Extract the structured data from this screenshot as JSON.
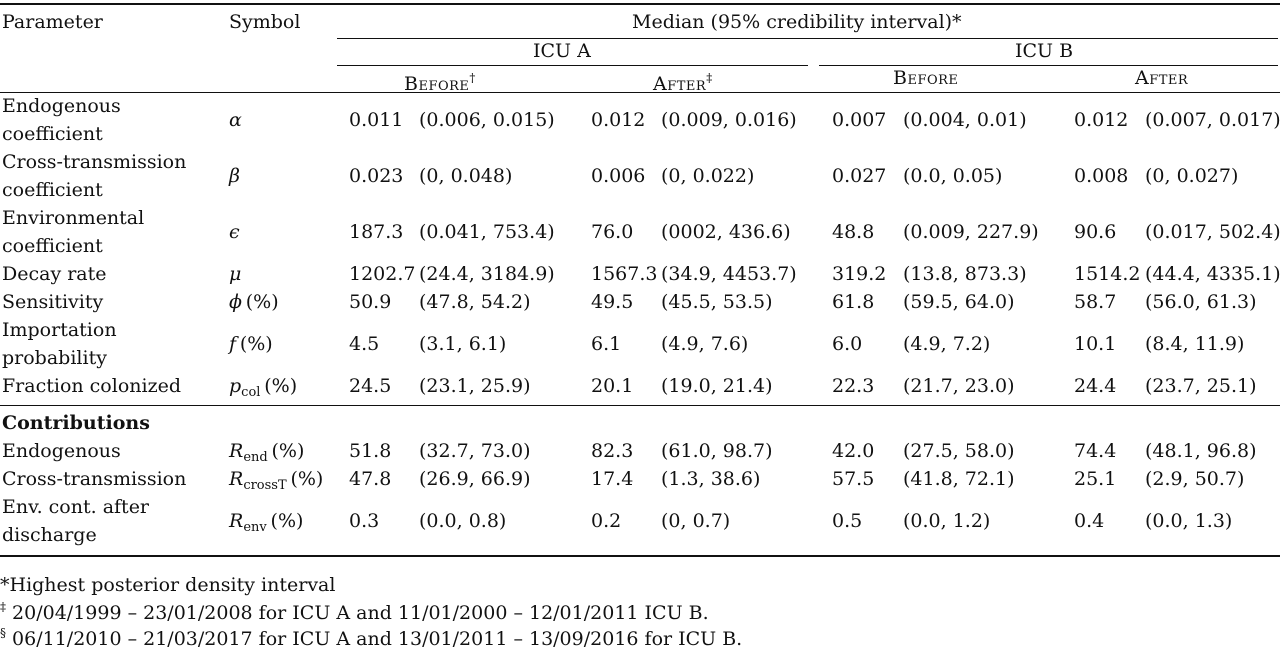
{
  "header": {
    "parameter": "Parameter",
    "symbol": "Symbol",
    "median": "Median (95% credibility interval)*",
    "icu_a": "ICU A",
    "icu_b": "ICU B",
    "before_a": "Before",
    "before_a_mark": "†",
    "after_a": "After",
    "after_a_mark": "‡",
    "before_b": "Before",
    "after_b": "After"
  },
  "rows": [
    {
      "param": [
        "Endogenous",
        "coefficient"
      ],
      "symbol": "α",
      "vals": [
        "0.011",
        "(0.006, 0.015)",
        "0.012",
        "(0.009, 0.016)",
        "0.007",
        "(0.004, 0.01)",
        "0.012",
        "(0.007, 0.017)"
      ]
    },
    {
      "param": [
        "Cross-transmission",
        "coefficient"
      ],
      "symbol": "β",
      "vals": [
        "0.023",
        "(0, 0.048)",
        "0.006",
        "(0, 0.022)",
        "0.027",
        "(0.0, 0.05)",
        "0.008",
        "(0, 0.027)"
      ]
    },
    {
      "param": [
        "Environmental",
        "coefficient"
      ],
      "symbol": "ϵ",
      "vals": [
        "187.3",
        "(0.041, 753.4)",
        "76.0",
        "(0002, 436.6)",
        "48.8",
        "(0.009, 227.9)",
        "90.6",
        "(0.017, 502.4)"
      ]
    },
    {
      "param": [
        "Decay rate"
      ],
      "symbol": "μ",
      "vals": [
        "1202.7",
        "(24.4, 3184.9)",
        "1567.3",
        "(34.9, 4453.7)",
        "319.2",
        "(13.8, 873.3)",
        "1514.2",
        "(44.4, 4335.1)"
      ]
    },
    {
      "param": [
        "Sensitivity"
      ],
      "symbol": "ϕ",
      "symbol_unit": "(%)",
      "vals": [
        "50.9",
        "(47.8, 54.2)",
        "49.5",
        "(45.5, 53.5)",
        "61.8",
        "(59.5, 64.0)",
        "58.7",
        "(56.0, 61.3)"
      ]
    },
    {
      "param": [
        "Importation",
        "probability"
      ],
      "symbol": "f",
      "symbol_unit": "(%)",
      "vals": [
        "4.5",
        "(3.1, 6.1)",
        "6.1",
        "(4.9, 7.6)",
        "6.0",
        "(4.9, 7.2)",
        "10.1",
        "(8.4, 11.9)"
      ]
    },
    {
      "param": [
        "Fraction colonized"
      ],
      "symbol": "p",
      "symbol_sub": "col",
      "symbol_unit": "(%)",
      "vals": [
        "24.5",
        "(23.1, 25.9)",
        "20.1",
        "(19.0, 21.4)",
        "22.3",
        "(21.7, 23.0)",
        "24.4",
        "(23.7, 25.1)"
      ]
    }
  ],
  "contrib_title": "Contributions",
  "contrib": [
    {
      "param": [
        "Endogenous"
      ],
      "symbol": "R",
      "symbol_sub": "end",
      "symbol_unit": "(%)",
      "vals": [
        "51.8",
        "(32.7, 73.0)",
        "82.3",
        "(61.0, 98.7)",
        "42.0",
        "(27.5, 58.0)",
        "74.4",
        "(48.1, 96.8)"
      ]
    },
    {
      "param": [
        "Cross-transmission"
      ],
      "symbol": "R",
      "symbol_sub": "crossT",
      "symbol_unit": "(%)",
      "vals": [
        "47.8",
        "(26.9, 66.9)",
        "17.4",
        "(1.3, 38.6)",
        "57.5",
        "(41.8, 72.1)",
        "25.1",
        "(2.9, 50.7)"
      ]
    },
    {
      "param": [
        "Env. cont. after",
        "discharge"
      ],
      "symbol": "R",
      "symbol_sub": "env",
      "symbol_unit": "(%)",
      "vals": [
        "0.3",
        "(0.0, 0.8)",
        "0.2",
        "(0, 0.7)",
        "0.5",
        "(0.0, 1.2)",
        "0.4",
        "(0.0, 1.3)"
      ]
    }
  ],
  "footnotes": {
    "f1": "*Highest posterior density interval",
    "f2_mark": "‡",
    "f2": " 20/04/1999 – 23/01/2008 for ICU A and 11/01/2000 – 12/01/2011 ICU B.",
    "f3_mark": "§",
    "f3": " 06/11/2010 – 21/03/2017 for ICU A and 13/01/2011 – 13/09/2016 for ICU B."
  }
}
